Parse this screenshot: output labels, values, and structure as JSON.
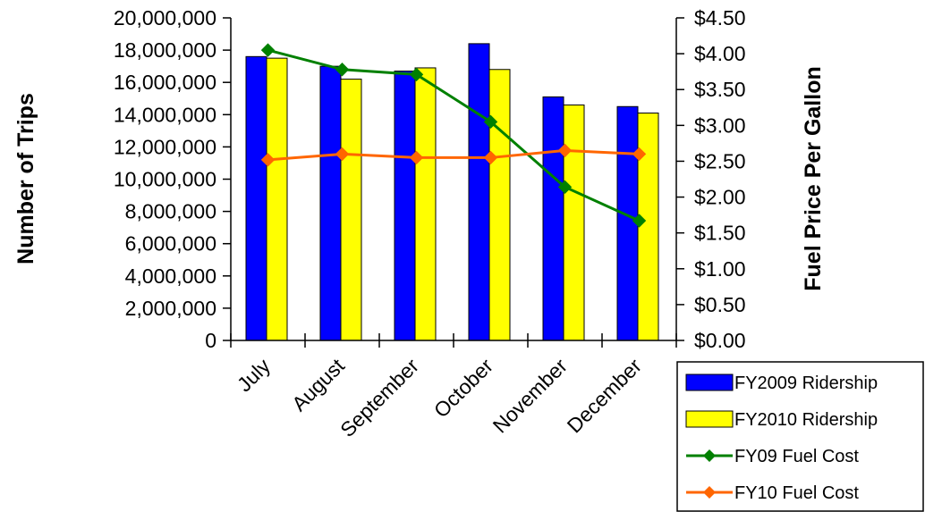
{
  "chart_data": {
    "type": "bar",
    "categories": [
      "July",
      "August",
      "September",
      "October",
      "November",
      "December"
    ],
    "series": [
      {
        "name": "FY2009 Ridership",
        "kind": "bar",
        "axis": "left",
        "color": "#0000FF",
        "values": [
          17600000,
          17000000,
          16700000,
          18400000,
          15100000,
          14500000
        ]
      },
      {
        "name": "FY2010 Ridership",
        "kind": "bar",
        "axis": "left",
        "color": "#FFFF00",
        "values": [
          17500000,
          16200000,
          16900000,
          16800000,
          14600000,
          14100000
        ]
      },
      {
        "name": "FY09 Fuel Cost",
        "kind": "line",
        "axis": "right",
        "color": "#008000",
        "values": [
          4.05,
          3.78,
          3.71,
          3.05,
          2.14,
          1.67
        ]
      },
      {
        "name": "FY10 Fuel Cost",
        "kind": "line",
        "axis": "right",
        "color": "#FF6600",
        "values": [
          2.52,
          2.6,
          2.55,
          2.55,
          2.65,
          2.6
        ]
      }
    ],
    "ylabel": "Number of Trips",
    "y2label": "Fuel Price Per Gallon",
    "ylim": [
      0,
      20000000
    ],
    "y2lim": [
      0,
      4.5
    ],
    "yticks": [
      "0",
      "2,000,000",
      "4,000,000",
      "6,000,000",
      "8,000,000",
      "10,000,000",
      "12,000,000",
      "14,000,000",
      "16,000,000",
      "18,000,000",
      "20,000,000"
    ],
    "y2ticks": [
      "$0.00",
      "$0.50",
      "$1.00",
      "$1.50",
      "$2.00",
      "$2.50",
      "$3.00",
      "$3.50",
      "$4.00",
      "$4.50"
    ],
    "grid": false,
    "legend_position": "bottom-right"
  }
}
